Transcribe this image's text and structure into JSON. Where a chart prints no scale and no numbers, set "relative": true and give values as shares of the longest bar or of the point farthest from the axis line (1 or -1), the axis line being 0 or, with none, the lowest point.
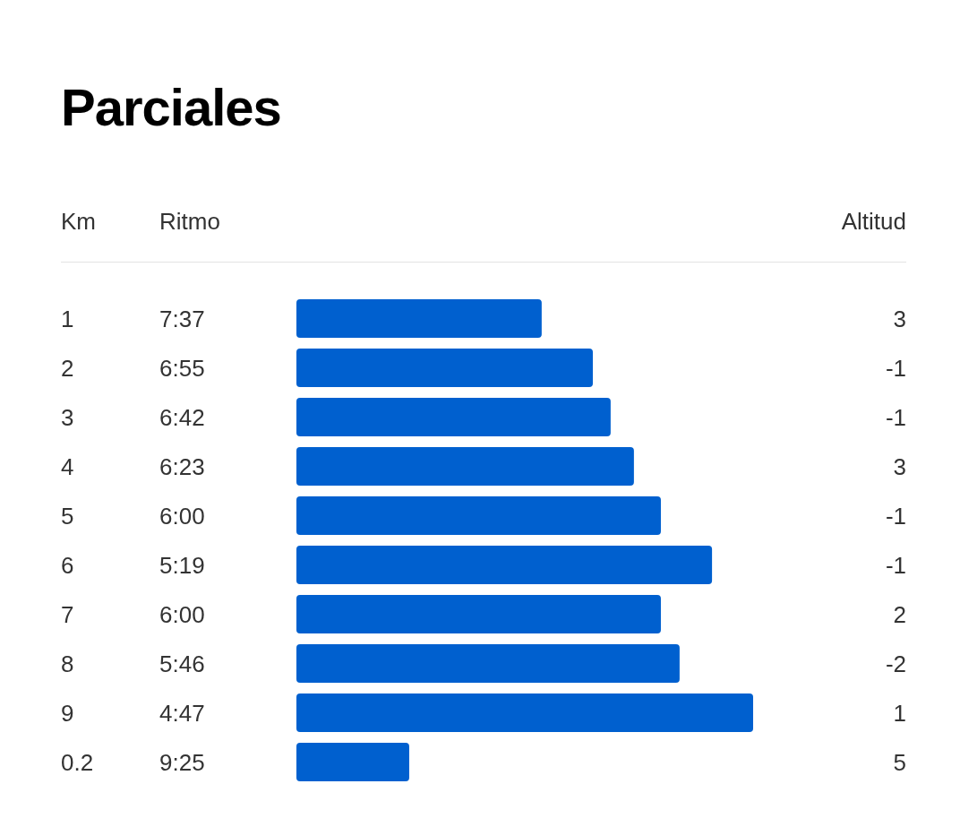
{
  "chart_data": {
    "type": "bar",
    "orientation": "horizontal",
    "relative": true,
    "title": "Parciales",
    "ylabel": "Km",
    "categories": [
      "1",
      "2",
      "3",
      "4",
      "5",
      "6",
      "7",
      "8",
      "9",
      "0.2"
    ],
    "values": [
      0.537,
      0.649,
      0.688,
      0.739,
      0.798,
      0.91,
      0.798,
      0.839,
      1,
      0.247
    ],
    "color": "#0060cf",
    "annotations": [
      "Ritmo",
      "Altitud",
      "7:37",
      "3",
      "6:55",
      "-1",
      "6:42",
      "-1",
      "6:23",
      "3",
      "6:00",
      "-1",
      "5:19",
      "-1",
      "6:00",
      "2",
      "5:46",
      "-2",
      "4:47",
      "1",
      "9:25",
      "5"
    ]
  }
}
